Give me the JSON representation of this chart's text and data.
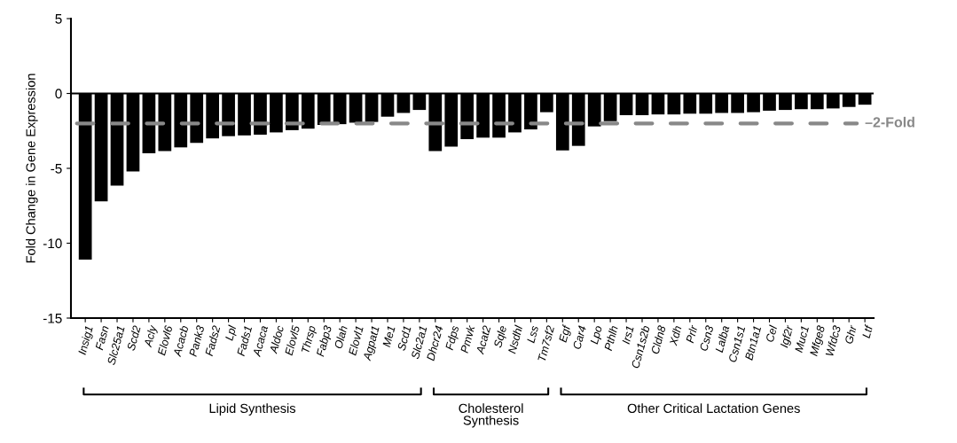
{
  "chart_data": {
    "type": "bar",
    "ylabel": "Fold Change in Gene Expression",
    "categories": [
      "Insig1",
      "Fasn",
      "Slc25a1",
      "Scd2",
      "Acly",
      "Elovl6",
      "Acacb",
      "Pank3",
      "Fads2",
      "Lpl",
      "Fads1",
      "Acaca",
      "Aldoc",
      "Elovl5",
      "Thrsp",
      "Fabp3",
      "Olah",
      "Elovl1",
      "Agpat1",
      "Me1",
      "Scd1",
      "Slc2a1",
      "Dhcr24",
      "Fdps",
      "Pmvk",
      "Acat2",
      "Sqle",
      "Nsdhl",
      "Lss",
      "Tm7sf2",
      "Egf",
      "Car4",
      "Lpo",
      "Pthlh",
      "Irs1",
      "Csn1s2b",
      "Cldn8",
      "Xdh",
      "Prlr",
      "Csn3",
      "Lalba",
      "Csn1s1",
      "Btn1a1",
      "Cel",
      "Igf2r",
      "Muc1",
      "Mfge8",
      "Wfdc3",
      "Ghr",
      "Ltf"
    ],
    "values": [
      -11.1,
      -7.2,
      -6.15,
      -5.2,
      -4.0,
      -3.85,
      -3.6,
      -3.3,
      -3.0,
      -2.85,
      -2.8,
      -2.75,
      -2.6,
      -2.45,
      -2.35,
      -2.1,
      -2.05,
      -1.95,
      -1.9,
      -1.55,
      -1.3,
      -1.1,
      -3.85,
      -3.55,
      -3.05,
      -2.95,
      -2.95,
      -2.6,
      -2.4,
      -1.25,
      -3.8,
      -3.5,
      -2.2,
      -1.85,
      -1.45,
      -1.45,
      -1.4,
      -1.4,
      -1.35,
      -1.35,
      -1.3,
      -1.3,
      -1.25,
      -1.15,
      -1.1,
      -1.05,
      -1.05,
      -1.0,
      -0.9,
      -0.75
    ],
    "color": "#000000",
    "ylim": [
      -15,
      5
    ],
    "yticks": [
      -15,
      -10,
      -5,
      0,
      5
    ],
    "ref_lines": [
      {
        "axis": "y",
        "value": -2,
        "label": "–2-Fold",
        "color": "#888888",
        "line_style": "dashed"
      }
    ],
    "annotations": [
      "Lipid Synthesis",
      "Cholesterol Synthesis",
      "Other Critical Lactation Genes"
    ],
    "legend": false
  }
}
